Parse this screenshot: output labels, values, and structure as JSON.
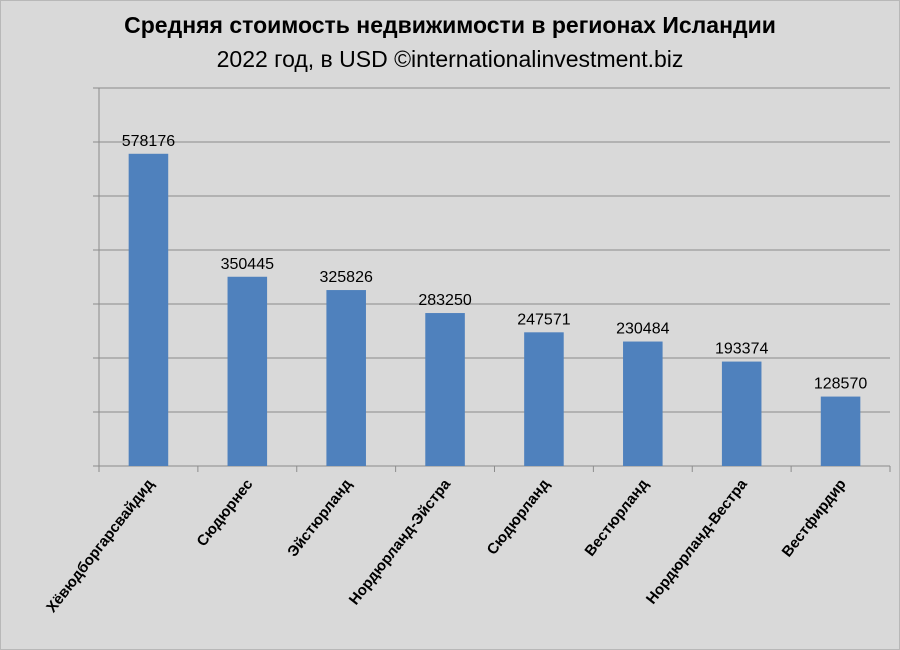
{
  "chart_data": {
    "type": "bar",
    "title": "Средняя стоимость недвижимости в регионах Исландии",
    "subtitle": "2022 год, в USD ©internationalinvestment.biz",
    "categories": [
      "Хёвюдборгарсвайдид",
      "Сюдюрнес",
      "Эйстюрланд",
      "Нордюрланд-Эйстра",
      "Сюдюрланд",
      "Вестюрланд",
      "Нордюрланд-Вестра",
      "Вестфирдир"
    ],
    "values": [
      578176,
      350445,
      325826,
      283250,
      247571,
      230484,
      193374,
      128570
    ],
    "ylim": [
      0,
      700000
    ],
    "grid": true,
    "bar_color": "#4f81bd",
    "gridline_color": "#8c8c8c"
  }
}
